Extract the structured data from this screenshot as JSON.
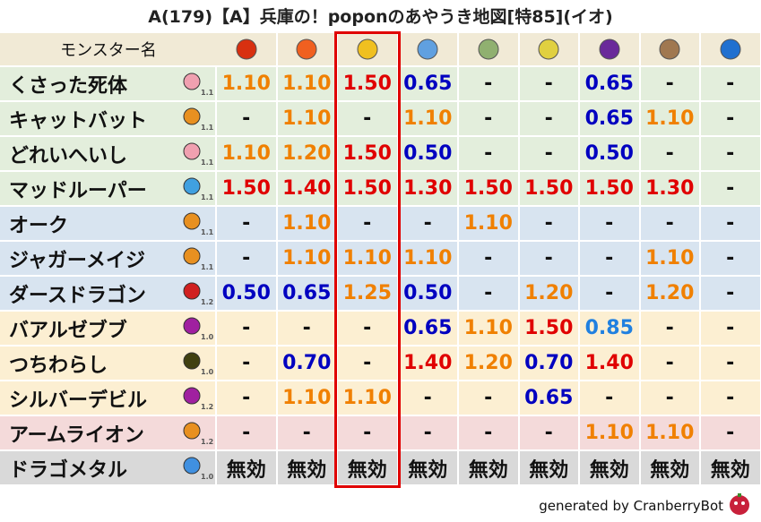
{
  "title": "A(179)【A】兵庫の！poponのあやうき地図[特85](イオ)",
  "table": {
    "header": "モンスター名",
    "rows": [
      {
        "name": "くさった死体",
        "level": "1.1",
        "cells": [
          "1.10",
          "1.10",
          "1.50",
          "0.65",
          "-",
          "-",
          "0.65",
          "-",
          "-"
        ]
      },
      {
        "name": "キャットバット",
        "level": "1.1",
        "cells": [
          "-",
          "1.10",
          "-",
          "1.10",
          "-",
          "-",
          "0.65",
          "1.10",
          "-"
        ]
      },
      {
        "name": "どれいへいし",
        "level": "1.1",
        "cells": [
          "1.10",
          "1.20",
          "1.50",
          "0.50",
          "-",
          "-",
          "0.50",
          "-",
          "-"
        ]
      },
      {
        "name": "マッドルーパー",
        "level": "1.1",
        "cells": [
          "1.50",
          "1.40",
          "1.50",
          "1.30",
          "1.50",
          "1.50",
          "1.50",
          "1.30",
          "-"
        ]
      },
      {
        "name": "オーク",
        "level": "1.1",
        "cells": [
          "-",
          "1.10",
          "-",
          "-",
          "1.10",
          "-",
          "-",
          "-",
          "-"
        ]
      },
      {
        "name": "ジャガーメイジ",
        "level": "1.1",
        "cells": [
          "-",
          "1.10",
          "1.10",
          "1.10",
          "-",
          "-",
          "-",
          "1.10",
          "-"
        ]
      },
      {
        "name": "ダースドラゴン",
        "level": "1.2",
        "cells": [
          "0.50",
          "0.65",
          "1.25",
          "0.50",
          "-",
          "1.20",
          "-",
          "1.20",
          "-"
        ]
      },
      {
        "name": "バアルゼブブ",
        "level": "1.0",
        "cells": [
          "-",
          "-",
          "-",
          "0.65",
          "1.10",
          "1.50",
          "0.85",
          "-",
          "-"
        ]
      },
      {
        "name": "つちわらし",
        "level": "1.0",
        "cells": [
          "-",
          "0.70",
          "-",
          "1.40",
          "1.20",
          "0.70",
          "1.40",
          "-",
          "-"
        ]
      },
      {
        "name": "シルバーデビル",
        "level": "1.2",
        "cells": [
          "-",
          "1.10",
          "1.10",
          "-",
          "-",
          "0.65",
          "-",
          "-",
          "-"
        ]
      },
      {
        "name": "アームライオン",
        "level": "1.2",
        "cells": [
          "-",
          "-",
          "-",
          "-",
          "-",
          "-",
          "1.10",
          "1.10",
          "-"
        ]
      },
      {
        "name": "ドラゴメタル",
        "level": "1.0",
        "cells": [
          "無効",
          "無効",
          "無効",
          "無効",
          "無効",
          "無効",
          "無効",
          "無効",
          "無効"
        ]
      }
    ]
  },
  "footer": "generated by CranberryBot"
}
